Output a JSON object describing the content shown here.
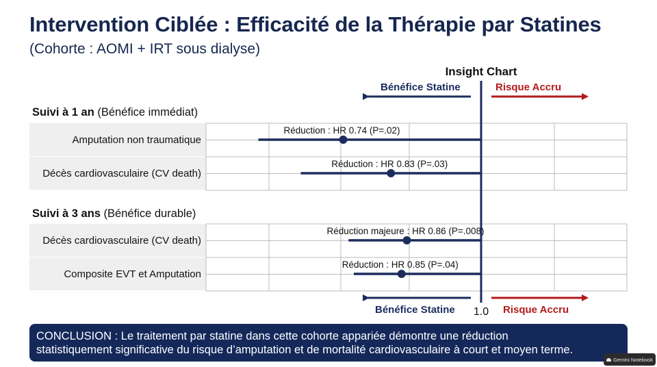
{
  "header": {
    "title": "Intervention Ciblée : Efficacité de la Thérapie par Statines",
    "subtitle": "(Cohorte : AOMI + IRT sous dialyse)"
  },
  "chart_data": {
    "type": "forest",
    "title": "Insight Chart",
    "direction_labels": {
      "left": "Bénéfice Statine",
      "right": "Risque Accru"
    },
    "reference_line": 1.0,
    "reference_label": "1.0",
    "colors": {
      "navy": "#1b2c5e",
      "red": "#b31b1b",
      "grid": "#bbbbbb"
    },
    "sections": [
      {
        "title_bold": "Suivi à 1 an",
        "title_rest": " (Bénéfice immédiat)",
        "rows": [
          {
            "label": "Amputation non traumatique",
            "hr": 0.74,
            "ci_low": 0.58,
            "ci_high": 1.0,
            "annotation": "Réduction : HR 0.74 (P=.02)"
          },
          {
            "label": "Décès cardiovasculaire (CV death)",
            "hr": 0.83,
            "ci_low": 0.66,
            "ci_high": 1.0,
            "annotation": "Réduction : HR 0.83 (P=.03)"
          }
        ]
      },
      {
        "title_bold": "Suivi à 3 ans",
        "title_rest": " (Bénéfice durable)",
        "rows": [
          {
            "label": "Décès cardiovasculaire (CV death)",
            "hr": 0.86,
            "ci_low": 0.75,
            "ci_high": 1.0,
            "annotation": "Réduction majeure : HR 0.86 (P=.008)"
          },
          {
            "label": "Composite EVT et Amputation",
            "hr": 0.85,
            "ci_low": 0.76,
            "ci_high": 1.0,
            "annotation": "Réduction : HR 0.85 (P=.04)"
          }
        ]
      }
    ]
  },
  "conclusion": {
    "line1": "CONCLUSION : Le traitement par statine dans cette cohorte appariée démontre une réduction",
    "line2": "statistiquement significative du risque d’amputation et de mortalité cardiovasculaire à court et moyen terme."
  },
  "badge": {
    "label": "Gemini Notebook"
  }
}
